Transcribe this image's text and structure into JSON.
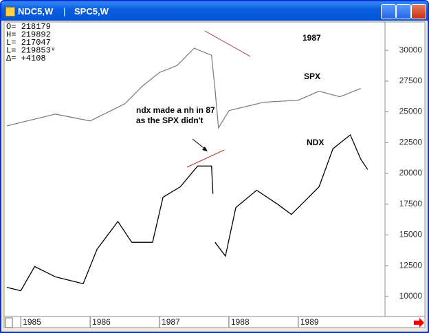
{
  "window": {
    "tabs": [
      "NDC5,W",
      "SPC5,W"
    ]
  },
  "info_box": [
    "O= 218179",
    "H= 219892",
    "L= 217047",
    "L= 219853ᵛ",
    "Δ=   +4108"
  ],
  "chart_data": {
    "type": "line",
    "annotations": [
      "1987",
      "SPX",
      "NDX",
      "ndx made a nh in 87",
      "as the SPX didn't"
    ],
    "xlim": [
      1984.76,
      1990.25
    ],
    "xticks": [
      1985,
      1986,
      1987,
      1988,
      1989
    ],
    "ylim": [
      8370,
      32300
    ],
    "yticks": [
      10000,
      12500,
      15000,
      17500,
      20000,
      22500,
      25000,
      27500,
      30000
    ],
    "series": [
      {
        "name": "SPX",
        "color": "#808080",
        "x": [
          1984.8,
          1985.5,
          1986,
          1986.5,
          1986.75,
          1987,
          1987.25,
          1987.5,
          1987.75,
          1987.8,
          1987.85,
          1988,
          1988.5,
          1989,
          1989.3,
          1989.6,
          1989.9
        ],
        "values": [
          23860,
          24820,
          24260,
          25660,
          27070,
          28200,
          28760,
          30170,
          29600,
          26790,
          23690,
          25100,
          25780,
          25950,
          26680,
          26230,
          26900
        ]
      },
      {
        "name": "NDX",
        "color": "#000000",
        "x": [
          1984.8,
          1985,
          1985.2,
          1985.5,
          1985.9,
          1986.1,
          1986.4,
          1986.6,
          1986.9,
          1987.05,
          1987.3,
          1987.55,
          1987.75,
          1987.77,
          1987.79,
          1987.8,
          1987.95,
          1988.1,
          1988.4,
          1988.7,
          1988.9,
          1989.1,
          1989.3,
          1989.5,
          1989.75,
          1989.9,
          1990
        ],
        "values": [
          10740,
          10460,
          12430,
          11590,
          11030,
          13840,
          16090,
          14400,
          14400,
          18060,
          18910,
          20600,
          20600,
          18340,
          null,
          14400,
          13280,
          17220,
          18630,
          17500,
          16660,
          17780,
          18910,
          22000,
          23130,
          21160,
          20320
        ]
      }
    ]
  }
}
